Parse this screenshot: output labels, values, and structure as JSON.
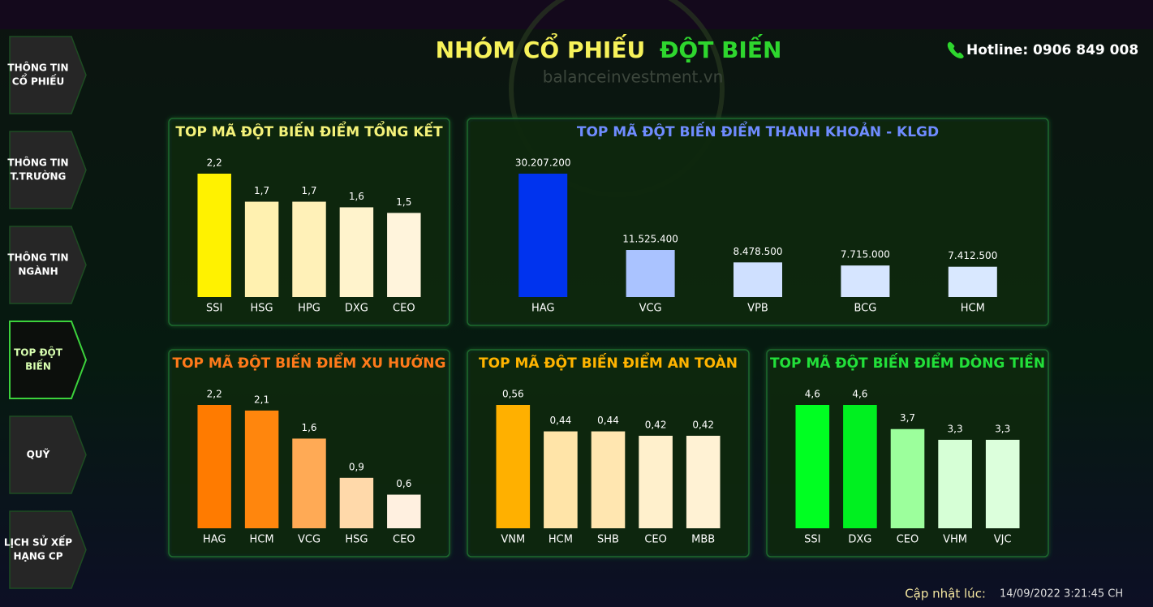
{
  "header": {
    "title_part1": "NHÓM CỔ PHIẾU",
    "title_part2": "ĐỘT BIẾN",
    "hotline": "Hotline: 0906 849 008",
    "watermark": "balanceinvestment.vn"
  },
  "nav": {
    "items": [
      {
        "lines": [
          "THÔNG TIN",
          "CỔ PHIẾU"
        ]
      },
      {
        "lines": [
          "THÔNG TIN",
          "T.TRƯỜNG"
        ]
      },
      {
        "lines": [
          "THÔNG TIN",
          "NGÀNH"
        ]
      },
      {
        "lines": [
          "TOP ĐỘT",
          "BIẾN"
        ],
        "active": true
      },
      {
        "lines": [
          "QUỸ"
        ]
      },
      {
        "lines": [
          "LỊCH SỬ XẾP",
          "HẠNG CP"
        ]
      }
    ]
  },
  "footer": {
    "label": "Cập nhật lúc:",
    "timestamp": "14/09/2022 3:21:45 CH"
  },
  "chart_data": [
    {
      "type": "bar",
      "title": "TOP MÃ ĐỘT BIẾN ĐIỂM TỔNG KẾT",
      "title_color": "#f4f27a",
      "categories": [
        "SSI",
        "HSG",
        "HPG",
        "DXG",
        "CEO"
      ],
      "values": [
        2.2,
        1.7,
        1.7,
        1.6,
        1.5
      ],
      "value_labels": [
        "2,2",
        "1,7",
        "1,7",
        "1,6",
        "1,5"
      ],
      "colors": [
        "#fff200",
        "#fff1b0",
        "#fff1b8",
        "#fff3cc",
        "#fff4dc"
      ]
    },
    {
      "type": "bar",
      "title": "TOP MÃ ĐỘT BIẾN ĐIỂM THANH KHOẢN - KLGD",
      "title_color": "#6f8cff",
      "categories": [
        "HAG",
        "VCG",
        "VPB",
        "BCG",
        "HCM"
      ],
      "values": [
        30207200,
        11525400,
        8478500,
        7715000,
        7412500
      ],
      "value_labels": [
        "30.207.200",
        "11.525.400",
        "8.478.500",
        "7.715.000",
        "7.412.500"
      ],
      "colors": [
        "#0033ee",
        "#aac3ff",
        "#cfe0ff",
        "#d6e5ff",
        "#d9e8ff"
      ]
    },
    {
      "type": "bar",
      "title": "TOP MÃ ĐỘT BIẾN ĐIỂM XU HƯỚNG",
      "title_color": "#ff7a1a",
      "categories": [
        "HAG",
        "HCM",
        "VCG",
        "HSG",
        "CEO"
      ],
      "values": [
        2.2,
        2.1,
        1.6,
        0.9,
        0.6
      ],
      "value_labels": [
        "2,2",
        "2,1",
        "1,6",
        "0,9",
        "0,6"
      ],
      "colors": [
        "#ff7b00",
        "#ff860d",
        "#ffaa55",
        "#ffd9aa",
        "#fff0e0"
      ]
    },
    {
      "type": "bar",
      "title": "TOP MÃ ĐỘT BIẾN ĐIỂM AN TOÀN",
      "title_color": "#ffb400",
      "categories": [
        "VNM",
        "HCM",
        "SHB",
        "CEO",
        "MBB"
      ],
      "values": [
        0.56,
        0.44,
        0.44,
        0.42,
        0.42
      ],
      "value_labels": [
        "0,56",
        "0,44",
        "0,44",
        "0,42",
        "0,42"
      ],
      "colors": [
        "#ffb000",
        "#ffe4a8",
        "#ffe6b0",
        "#fff0cc",
        "#fff2d4"
      ]
    },
    {
      "type": "bar",
      "title": "TOP MÃ ĐỘT BIẾN ĐIỂM DÒNG TIỀN",
      "title_color": "#22e03a",
      "categories": [
        "SSI",
        "DXG",
        "CEO",
        "VHM",
        "VJC"
      ],
      "values": [
        4.6,
        4.6,
        3.7,
        3.3,
        3.3
      ],
      "value_labels": [
        "4,6",
        "4,6",
        "3,7",
        "3,3",
        "3,3"
      ],
      "colors": [
        "#00ff22",
        "#00f020",
        "#9cff9c",
        "#d6ffd6",
        "#dcffdc"
      ]
    }
  ]
}
